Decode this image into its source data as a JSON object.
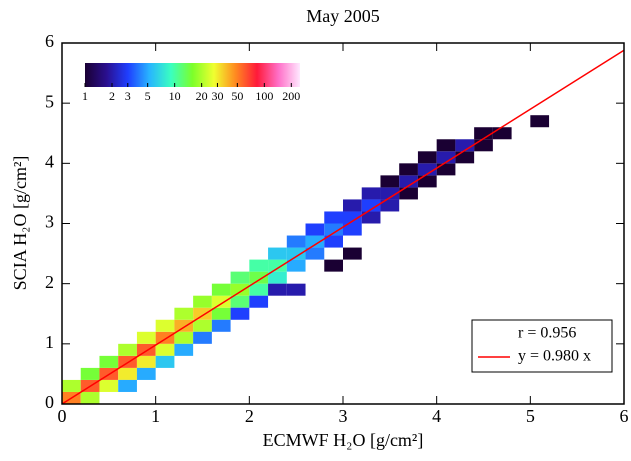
{
  "chart_data": {
    "type": "heatmap",
    "title": "May 2005",
    "xlabel": "ECMWF H₂O [g/cm²]",
    "ylabel": "SCIA H₂O [g/cm²]",
    "xlim": [
      0,
      6
    ],
    "ylim": [
      0,
      6
    ],
    "xticks": [
      0,
      1,
      2,
      3,
      4,
      5,
      6
    ],
    "yticks": [
      0,
      1,
      2,
      3,
      4,
      5,
      6
    ],
    "bin_size": 0.2,
    "x": [
      0,
      0,
      0.2,
      0.2,
      0.2,
      0.4,
      0.4,
      0.4,
      0.6,
      0.6,
      0.6,
      0.6,
      0.8,
      0.8,
      0.8,
      0.8,
      1.0,
      1.0,
      1.0,
      1.0,
      1.2,
      1.2,
      1.2,
      1.2,
      1.4,
      1.4,
      1.4,
      1.4,
      1.6,
      1.6,
      1.6,
      1.6,
      1.8,
      1.8,
      1.8,
      1.8,
      2.0,
      2.0,
      2.0,
      2.0,
      2.2,
      2.2,
      2.2,
      2.2,
      2.4,
      2.4,
      2.4,
      2.4,
      2.6,
      2.6,
      2.6,
      2.8,
      2.8,
      2.8,
      2.8,
      3.0,
      3.0,
      3.0,
      3.0,
      3.2,
      3.2,
      3.2,
      3.4,
      3.4,
      3.4,
      3.6,
      3.6,
      3.6,
      3.8,
      3.8,
      3.8,
      4.0,
      4.0,
      4.0,
      4.2,
      4.2,
      4.4,
      4.4,
      4.6,
      5.0
    ],
    "y": [
      0,
      0.2,
      0,
      0.2,
      0.4,
      0.2,
      0.4,
      0.6,
      0.4,
      0.6,
      0.8,
      0.2,
      0.6,
      0.8,
      1.0,
      0.4,
      0.8,
      1.0,
      1.2,
      0.6,
      1.0,
      1.2,
      1.4,
      0.8,
      1.2,
      1.4,
      1.6,
      1.0,
      1.4,
      1.6,
      1.8,
      1.2,
      1.6,
      1.8,
      2.0,
      1.4,
      1.8,
      2.0,
      2.2,
      1.6,
      2.0,
      2.2,
      2.4,
      1.8,
      2.2,
      2.4,
      2.6,
      1.8,
      2.4,
      2.6,
      2.8,
      2.6,
      2.8,
      3.0,
      2.2,
      2.8,
      3.0,
      3.2,
      2.4,
      3.0,
      3.2,
      3.4,
      3.2,
      3.4,
      3.6,
      3.4,
      3.6,
      3.8,
      3.6,
      3.8,
      4.0,
      3.8,
      4.0,
      4.2,
      4.0,
      4.2,
      4.2,
      4.4,
      4.4,
      4.6
    ],
    "values": [
      50,
      20,
      20,
      60,
      15,
      25,
      60,
      15,
      30,
      60,
      20,
      5,
      30,
      60,
      25,
      5,
      25,
      50,
      25,
      6,
      20,
      40,
      20,
      5,
      20,
      35,
      18,
      4,
      15,
      25,
      15,
      4,
      12,
      18,
      12,
      3,
      10,
      14,
      10,
      3,
      8,
      10,
      6,
      2,
      5,
      6,
      4,
      2,
      4,
      5,
      3,
      3,
      4,
      3,
      1,
      3,
      3,
      2,
      1,
      2,
      3,
      2,
      2,
      2,
      1,
      1,
      2,
      1,
      1,
      2,
      1,
      1,
      2,
      1,
      1,
      2,
      1,
      1,
      1,
      1
    ],
    "colorscale": [
      "#1a0033",
      "#2a0f8f",
      "#1f3fff",
      "#28b5ff",
      "#3affc0",
      "#7cff2a",
      "#f0ff30",
      "#ff8a20",
      "#ff1a3a",
      "#ff70c8",
      "#ffe8ff"
    ],
    "log_color": true,
    "clim": [
      1,
      250
    ],
    "cticks": [
      1,
      2,
      3,
      5,
      10,
      20,
      30,
      50,
      100,
      200
    ],
    "fit": {
      "slope": 0.98,
      "label": "y = 0.980 x",
      "color": "#ff0000"
    },
    "r": 0.956,
    "r_label": "r = 0.956"
  }
}
